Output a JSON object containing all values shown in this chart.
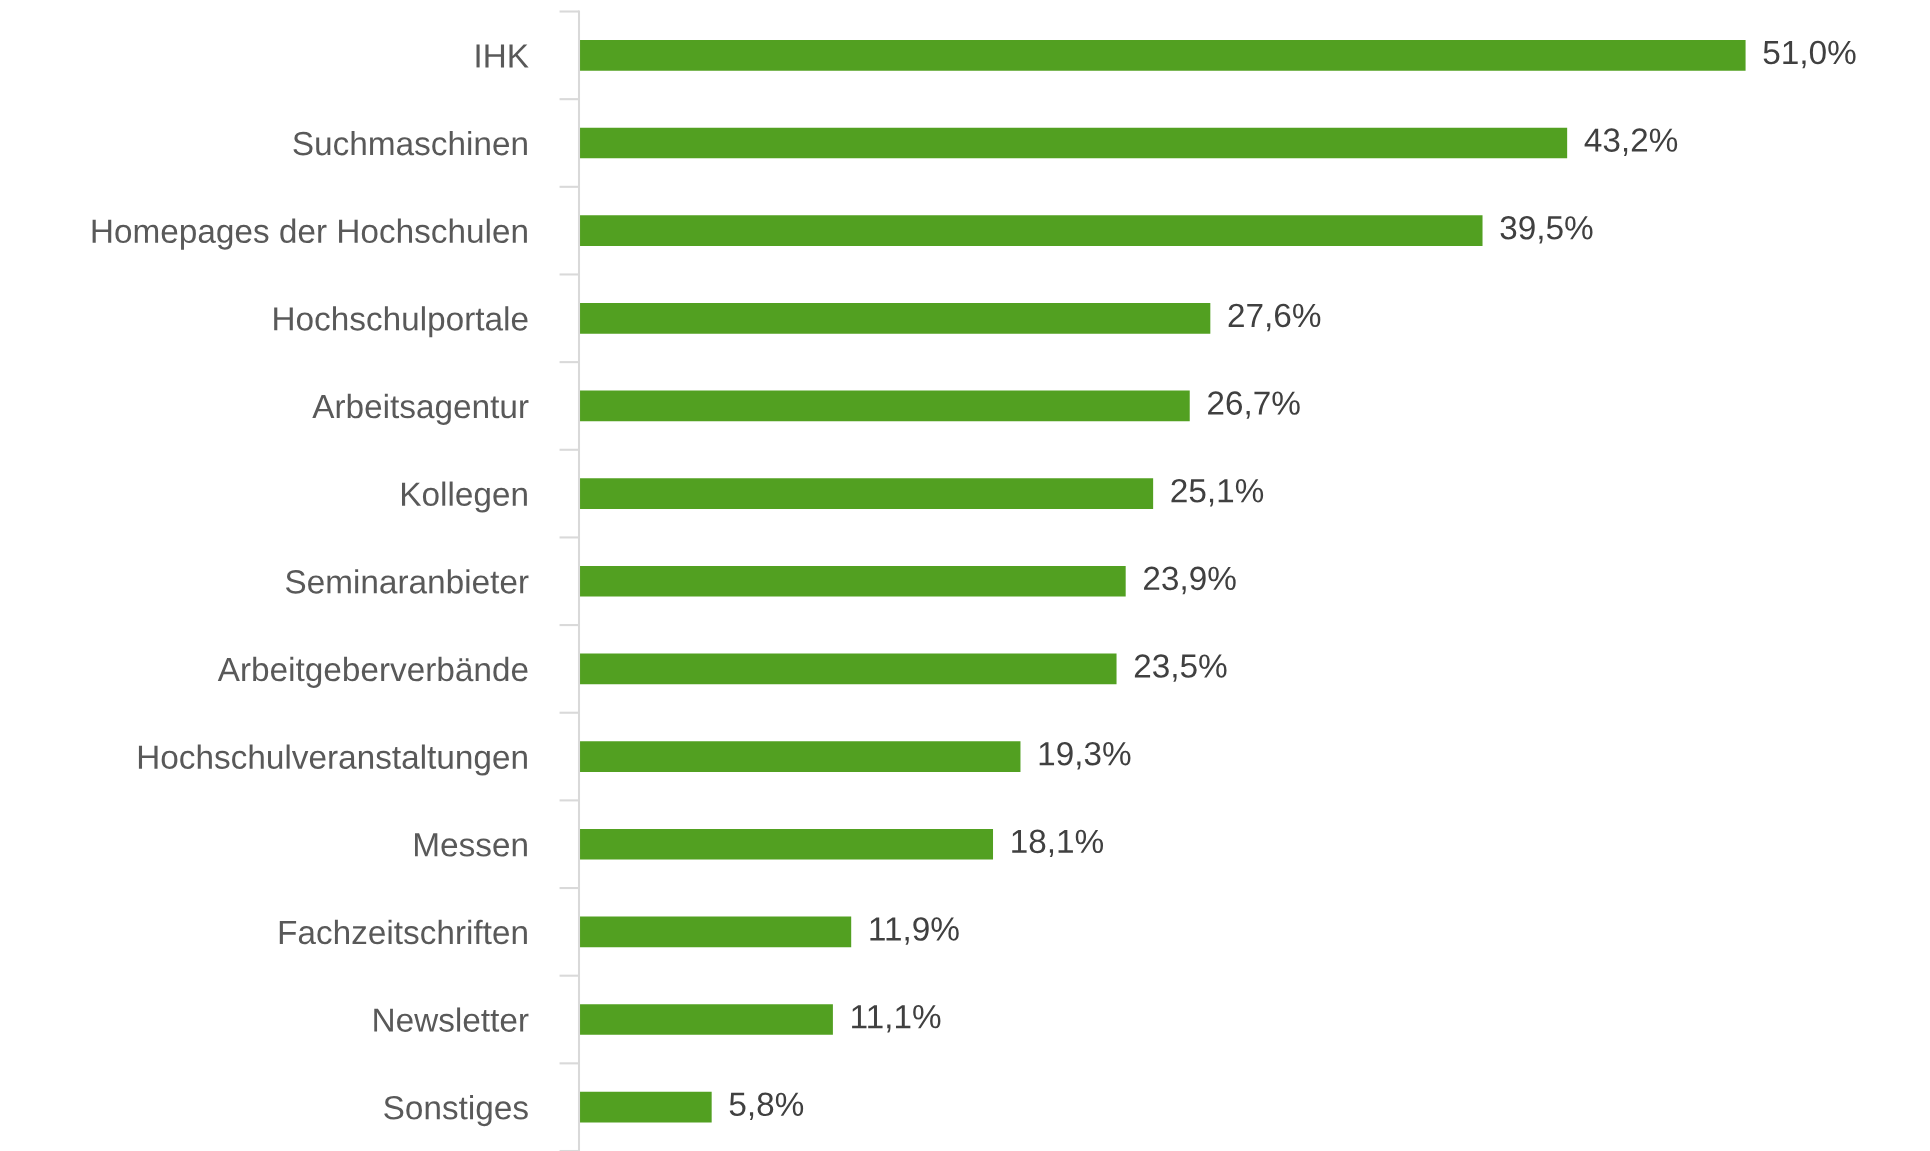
{
  "chart_data": {
    "type": "bar",
    "orientation": "horizontal",
    "categories": [
      "IHK",
      "Suchmaschinen",
      "Homepages der Hochschulen",
      "Hochschulportale",
      "Arbeitsagentur",
      "Kollegen",
      "Seminaranbieter",
      "Arbeitgeberverbände",
      "Hochschulveranstaltungen",
      "Messen",
      "Fachzeitschriften",
      "Newsletter",
      "Sonstiges"
    ],
    "values": [
      51.0,
      43.2,
      39.5,
      27.6,
      26.7,
      25.1,
      23.9,
      23.5,
      19.3,
      18.1,
      11.9,
      11.1,
      5.8
    ],
    "value_labels": [
      "51,0%",
      "43,2%",
      "39,5%",
      "27,6%",
      "26,7%",
      "25,1%",
      "23,9%",
      "23,5%",
      "19,3%",
      "18,1%",
      "11,9%",
      "11,1%",
      "5,8%"
    ],
    "color": "#52a021",
    "grid": false,
    "legend": false
  }
}
